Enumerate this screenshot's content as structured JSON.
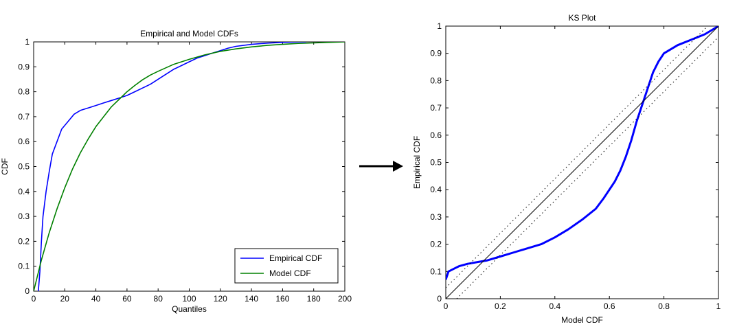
{
  "arrow": {
    "color": "#000000"
  },
  "chart_data": [
    {
      "type": "line",
      "title": "Empirical and Model CDFs",
      "xlabel": "Quantiles",
      "ylabel": "CDF",
      "xlim": [
        0,
        200
      ],
      "ylim": [
        0,
        1
      ],
      "x_ticks": [
        "0",
        "20",
        "40",
        "60",
        "80",
        "100",
        "120",
        "140",
        "160",
        "180",
        "200"
      ],
      "y_ticks": [
        "0",
        "0.1",
        "0.2",
        "0.3",
        "0.4",
        "0.5",
        "0.6",
        "0.7",
        "0.8",
        "0.9",
        "1"
      ],
      "grid": false,
      "legend_position": "bottom-right",
      "series": [
        {
          "name": "Empirical CDF",
          "color": "#0000ff",
          "x": [
            3,
            4,
            5,
            6,
            8,
            10,
            12,
            15,
            18,
            22,
            26,
            30,
            35,
            40,
            45,
            50,
            55,
            60,
            65,
            70,
            75,
            80,
            85,
            90,
            95,
            100,
            105,
            110,
            115,
            120,
            125,
            130,
            140,
            150,
            160,
            170,
            175
          ],
          "y": [
            0,
            0.08,
            0.2,
            0.3,
            0.4,
            0.48,
            0.55,
            0.6,
            0.65,
            0.68,
            0.71,
            0.725,
            0.735,
            0.745,
            0.755,
            0.765,
            0.775,
            0.785,
            0.8,
            0.815,
            0.83,
            0.85,
            0.87,
            0.89,
            0.905,
            0.92,
            0.935,
            0.945,
            0.955,
            0.965,
            0.975,
            0.982,
            0.99,
            0.995,
            0.998,
            1.0,
            1.0
          ]
        },
        {
          "name": "Model CDF",
          "color": "#008000",
          "x": [
            0,
            5,
            10,
            15,
            20,
            25,
            30,
            35,
            40,
            45,
            50,
            55,
            60,
            65,
            70,
            75,
            80,
            90,
            100,
            110,
            120,
            130,
            140,
            150,
            160,
            170,
            180,
            190,
            200
          ],
          "y": [
            0,
            0.125,
            0.235,
            0.33,
            0.415,
            0.49,
            0.555,
            0.61,
            0.66,
            0.7,
            0.74,
            0.77,
            0.8,
            0.825,
            0.848,
            0.867,
            0.882,
            0.91,
            0.93,
            0.948,
            0.962,
            0.972,
            0.98,
            0.986,
            0.99,
            0.994,
            0.996,
            0.998,
            1.0
          ]
        }
      ]
    },
    {
      "type": "line",
      "title": "KS Plot",
      "xlabel": "Model CDF",
      "ylabel": "Empirical CDF",
      "xlim": [
        0,
        1
      ],
      "ylim": [
        0,
        1
      ],
      "x_ticks": [
        "0",
        "0.2",
        "0.4",
        "0.6",
        "0.8",
        "1"
      ],
      "y_ticks": [
        "0",
        "0.1",
        "0.2",
        "0.3",
        "0.4",
        "0.5",
        "0.6",
        "0.7",
        "0.8",
        "0.9",
        "1"
      ],
      "grid": false,
      "series": [
        {
          "color": "#0000ff",
          "x": [
            0,
            0.01,
            0.03,
            0.05,
            0.08,
            0.12,
            0.15,
            0.2,
            0.25,
            0.3,
            0.35,
            0.4,
            0.45,
            0.5,
            0.55,
            0.58,
            0.6,
            0.62,
            0.64,
            0.66,
            0.68,
            0.7,
            0.72,
            0.74,
            0.76,
            0.78,
            0.8,
            0.85,
            0.9,
            0.95,
            1.0
          ],
          "y": [
            0.07,
            0.1,
            0.11,
            0.12,
            0.128,
            0.135,
            0.14,
            0.155,
            0.17,
            0.185,
            0.2,
            0.225,
            0.255,
            0.29,
            0.33,
            0.37,
            0.4,
            0.43,
            0.47,
            0.52,
            0.58,
            0.65,
            0.71,
            0.77,
            0.83,
            0.87,
            0.9,
            0.93,
            0.95,
            0.97,
            1.0
          ]
        },
        {
          "color": "#000000",
          "style": "solid",
          "x": [
            0,
            1
          ],
          "y": [
            0,
            1
          ]
        },
        {
          "color": "#000000",
          "style": "dotted",
          "x": [
            0,
            0.96
          ],
          "y": [
            0.04,
            1
          ]
        },
        {
          "color": "#000000",
          "style": "dotted",
          "x": [
            0.04,
            1
          ],
          "y": [
            0,
            0.96
          ]
        }
      ]
    }
  ]
}
